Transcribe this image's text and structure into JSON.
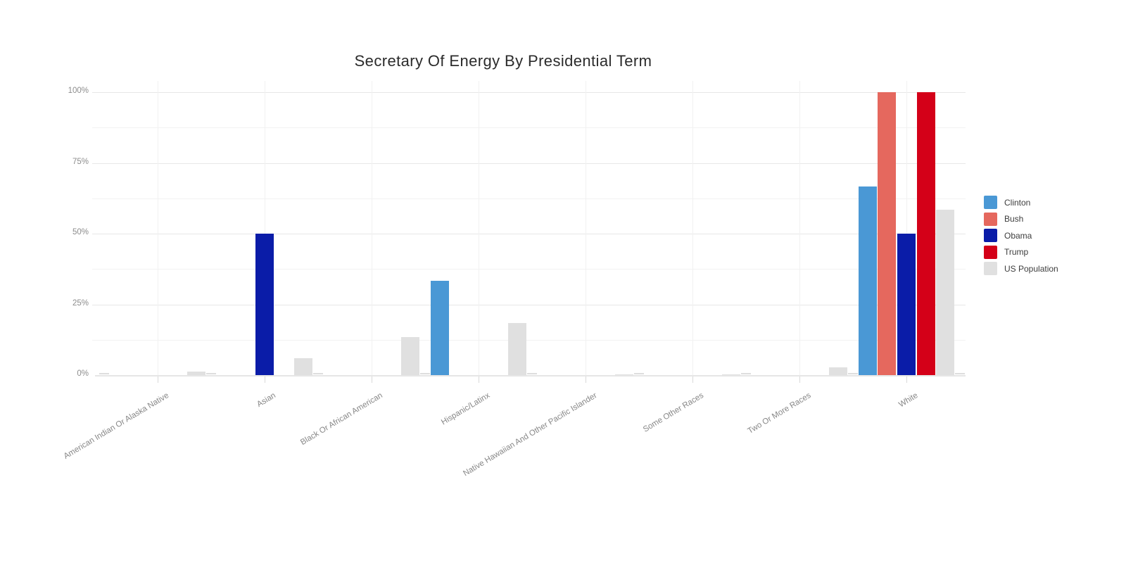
{
  "chart_data": {
    "type": "bar",
    "bar_mode": "grouped",
    "title": "Secretary Of Energy By Presidential Term",
    "categories": [
      "American Indian Or Alaska Native",
      "Asian",
      "Black Or African American",
      "Hispanic/Latinx",
      "Native Hawaiian And Other Pacific Islander",
      "Some Other Races",
      "Two Or More Races",
      "White"
    ],
    "series": [
      {
        "name": "Clinton",
        "color": "#4A98D5",
        "values": [
          0,
          0,
          0,
          33.3,
          0,
          0,
          0,
          66.7
        ]
      },
      {
        "name": "Bush",
        "color": "#E5685E",
        "values": [
          0,
          0,
          0,
          0,
          0,
          0,
          0,
          100
        ]
      },
      {
        "name": "Obama",
        "color": "#0A1CA8",
        "values": [
          0,
          50,
          0,
          0,
          0,
          0,
          0,
          50
        ]
      },
      {
        "name": "Trump",
        "color": "#D40018",
        "values": [
          0,
          0,
          0,
          0,
          0,
          0,
          0,
          100
        ]
      },
      {
        "name": "US Population",
        "color": "#E0E0E0",
        "values": [
          1.3,
          5.9,
          13.4,
          18.5,
          0.2,
          0.3,
          2.8,
          58.4
        ]
      }
    ],
    "yticks": [
      {
        "label": "0%",
        "value": 0
      },
      {
        "label": "25%",
        "value": 25
      },
      {
        "label": "50%",
        "value": 50
      },
      {
        "label": "75%",
        "value": 75
      },
      {
        "label": "100%",
        "value": 100
      }
    ],
    "minor_grid_values": [
      12.5,
      37.5,
      62.5,
      87.5
    ],
    "ylim": [
      0,
      100
    ],
    "xlabel": "",
    "ylabel": "",
    "grid": true,
    "legend_position": "right"
  },
  "colors": {
    "background": "#ffffff",
    "title_text": "#2b2b2b",
    "tick_text": "#8c8c8c",
    "grid_major": "#e7e7e7",
    "grid_minor": "#f2f2f2",
    "axis_line": "#e6e6e6",
    "legend_text": "#3d3d3d"
  }
}
